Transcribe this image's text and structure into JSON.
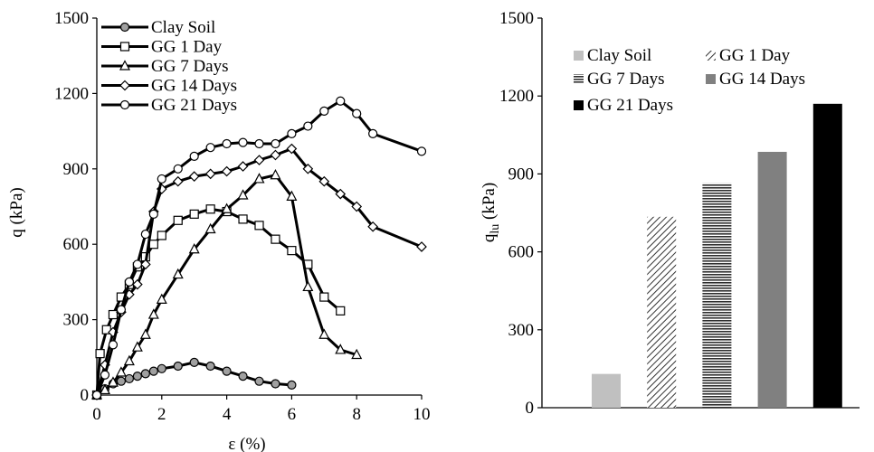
{
  "chart_data": [
    {
      "type": "line",
      "xlabel": "ε (%)",
      "ylabel": "q (kPa)",
      "xlim": [
        0,
        10
      ],
      "ylim": [
        0,
        1500
      ],
      "x_ticks": [
        "0",
        "2",
        "4",
        "6",
        "8",
        "10"
      ],
      "y_ticks": [
        "0",
        "300",
        "600",
        "900",
        "1200",
        "1500"
      ],
      "grid": false,
      "legend": "top-left",
      "series": [
        {
          "name": "Clay Soil",
          "marker": "circle-filled",
          "points": [
            [
              0,
              0
            ],
            [
              0.25,
              25
            ],
            [
              0.5,
              45
            ],
            [
              0.75,
              55
            ],
            [
              1.0,
              65
            ],
            [
              1.25,
              75
            ],
            [
              1.5,
              85
            ],
            [
              1.75,
              95
            ],
            [
              2.0,
              105
            ],
            [
              2.5,
              115
            ],
            [
              3.0,
              130
            ],
            [
              3.5,
              115
            ],
            [
              4.0,
              95
            ],
            [
              4.5,
              75
            ],
            [
              5.0,
              55
            ],
            [
              5.5,
              45
            ],
            [
              6.0,
              40
            ]
          ]
        },
        {
          "name": "GG 1 Day",
          "marker": "square",
          "points": [
            [
              0,
              0
            ],
            [
              0.1,
              165
            ],
            [
              0.3,
              260
            ],
            [
              0.5,
              320
            ],
            [
              0.75,
              390
            ],
            [
              1.0,
              440
            ],
            [
              1.25,
              510
            ],
            [
              1.5,
              550
            ],
            [
              1.75,
              600
            ],
            [
              2.0,
              635
            ],
            [
              2.5,
              695
            ],
            [
              3.0,
              720
            ],
            [
              3.5,
              740
            ],
            [
              4.0,
              730
            ],
            [
              4.5,
              700
            ],
            [
              5.0,
              675
            ],
            [
              5.5,
              620
            ],
            [
              6.0,
              575
            ],
            [
              6.5,
              520
            ],
            [
              7.0,
              390
            ],
            [
              7.5,
              335
            ]
          ]
        },
        {
          "name": "GG 7 Days",
          "marker": "triangle",
          "points": [
            [
              0,
              0
            ],
            [
              0.25,
              20
            ],
            [
              0.5,
              50
            ],
            [
              0.75,
              90
            ],
            [
              1.0,
              135
            ],
            [
              1.25,
              190
            ],
            [
              1.5,
              240
            ],
            [
              1.75,
              320
            ],
            [
              2.0,
              380
            ],
            [
              2.5,
              480
            ],
            [
              3.0,
              580
            ],
            [
              3.5,
              660
            ],
            [
              4.0,
              740
            ],
            [
              4.5,
              795
            ],
            [
              5.0,
              860
            ],
            [
              5.5,
              875
            ],
            [
              6.0,
              790
            ],
            [
              6.5,
              430
            ],
            [
              7.0,
              240
            ],
            [
              7.5,
              180
            ],
            [
              8.0,
              160
            ]
          ]
        },
        {
          "name": "GG 14 Days",
          "marker": "diamond",
          "points": [
            [
              0,
              0
            ],
            [
              0.25,
              120
            ],
            [
              0.5,
              250
            ],
            [
              0.75,
              330
            ],
            [
              1.0,
              400
            ],
            [
              1.25,
              440
            ],
            [
              1.5,
              520
            ],
            [
              1.75,
              730
            ],
            [
              2.0,
              820
            ],
            [
              2.5,
              850
            ],
            [
              3.0,
              870
            ],
            [
              3.5,
              880
            ],
            [
              4.0,
              890
            ],
            [
              4.5,
              910
            ],
            [
              5.0,
              935
            ],
            [
              5.5,
              955
            ],
            [
              6.0,
              980
            ],
            [
              6.5,
              900
            ],
            [
              7.0,
              850
            ],
            [
              7.5,
              800
            ],
            [
              8.0,
              750
            ],
            [
              8.5,
              670
            ],
            [
              10.0,
              590
            ]
          ]
        },
        {
          "name": "GG 21 Days",
          "marker": "circle-open",
          "points": [
            [
              0,
              0
            ],
            [
              0.25,
              80
            ],
            [
              0.5,
              200
            ],
            [
              0.75,
              340
            ],
            [
              1.0,
              450
            ],
            [
              1.25,
              520
            ],
            [
              1.5,
              640
            ],
            [
              1.75,
              720
            ],
            [
              2.0,
              860
            ],
            [
              2.5,
              900
            ],
            [
              3.0,
              950
            ],
            [
              3.5,
              985
            ],
            [
              4.0,
              1000
            ],
            [
              4.5,
              1005
            ],
            [
              5.0,
              1000
            ],
            [
              5.5,
              1000
            ],
            [
              6.0,
              1040
            ],
            [
              6.5,
              1070
            ],
            [
              7.0,
              1130
            ],
            [
              7.5,
              1170
            ],
            [
              8.0,
              1120
            ],
            [
              8.5,
              1040
            ],
            [
              10.0,
              970
            ]
          ]
        }
      ]
    },
    {
      "type": "bar",
      "ylabel": "q_lu (kPa)",
      "ylabel_main": "q",
      "ylabel_sub": "lu",
      "ylabel_unit": " (kPa)",
      "ylim": [
        0,
        1500
      ],
      "y_ticks": [
        "0",
        "300",
        "600",
        "900",
        "1200",
        "1500"
      ],
      "grid": false,
      "legend": "top-left",
      "categories": [
        "Clay Soil",
        "GG 1 Day",
        "GG 7 Days",
        "GG 14 Days",
        "GG 21 Days"
      ],
      "values": [
        130,
        735,
        865,
        985,
        1170
      ],
      "fills": [
        "solid-light-gray",
        "diagonal-hatch",
        "horizontal-hatch",
        "solid-gray",
        "solid-black"
      ],
      "colors": [
        "#c0c0c0",
        "#555555",
        "#333333",
        "#808080",
        "#000000"
      ]
    }
  ]
}
